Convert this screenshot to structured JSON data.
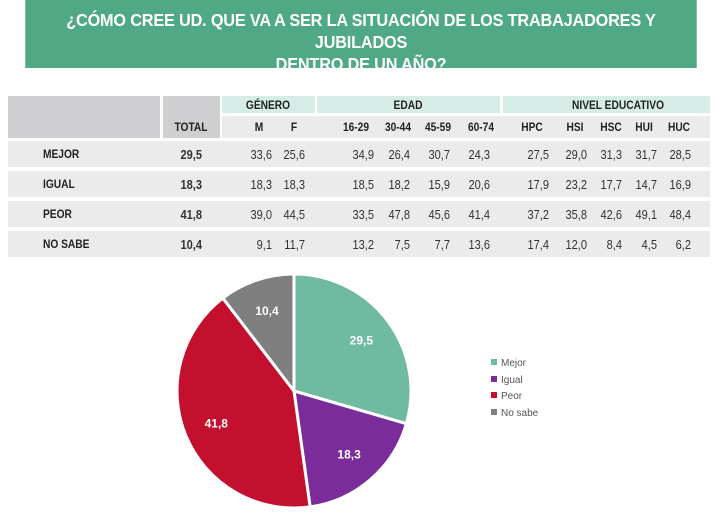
{
  "title_line1": "¿CÓMO CREE UD. QUE VA A SER LA SITUACIÓN DE LOS TRABAJADORES Y JUBILADOS",
  "title_line2": "DENTRO DE UN AÑO?",
  "table": {
    "total_header": "TOTAL",
    "groups": [
      "GÉNERO",
      "EDAD",
      "NIVEL EDUCATIVO"
    ],
    "columns": [
      "M",
      "F",
      "16-29",
      "30-44",
      "45-59",
      "60-74",
      "HPC",
      "HSI",
      "HSC",
      "HUI",
      "HUC"
    ],
    "rows": [
      {
        "label": "MEJOR",
        "total": "29,5",
        "values": [
          "33,6",
          "25,6",
          "34,9",
          "26,4",
          "30,7",
          "24,3",
          "27,5",
          "29,0",
          "31,3",
          "31,7",
          "28,5"
        ]
      },
      {
        "label": "IGUAL",
        "total": "18,3",
        "values": [
          "18,3",
          "18,3",
          "18,5",
          "18,2",
          "15,9",
          "20,6",
          "17,9",
          "23,2",
          "17,7",
          "14,7",
          "16,9"
        ]
      },
      {
        "label": "PEOR",
        "total": "41,8",
        "values": [
          "39,0",
          "44,5",
          "33,5",
          "47,8",
          "45,6",
          "41,4",
          "37,2",
          "35,8",
          "42,6",
          "49,1",
          "48,4"
        ]
      },
      {
        "label": "NO SABE",
        "total": "10,4",
        "values": [
          "9,1",
          "11,7",
          "13,2",
          "7,5",
          "7,7",
          "13,6",
          "17,4",
          "12,0",
          "8,4",
          "4,5",
          "6,2"
        ]
      }
    ]
  },
  "chart_data": {
    "type": "pie",
    "categories": [
      "Mejor",
      "Igual",
      "Peor",
      "No sabe"
    ],
    "values": [
      29.5,
      18.3,
      41.8,
      10.4
    ],
    "labels": [
      "29,5",
      "18,3",
      "41,8",
      "10,4"
    ],
    "colors": [
      "#6fbaa0",
      "#7b2c9b",
      "#c4102f",
      "#7f7f7f"
    ],
    "legend": "right"
  }
}
